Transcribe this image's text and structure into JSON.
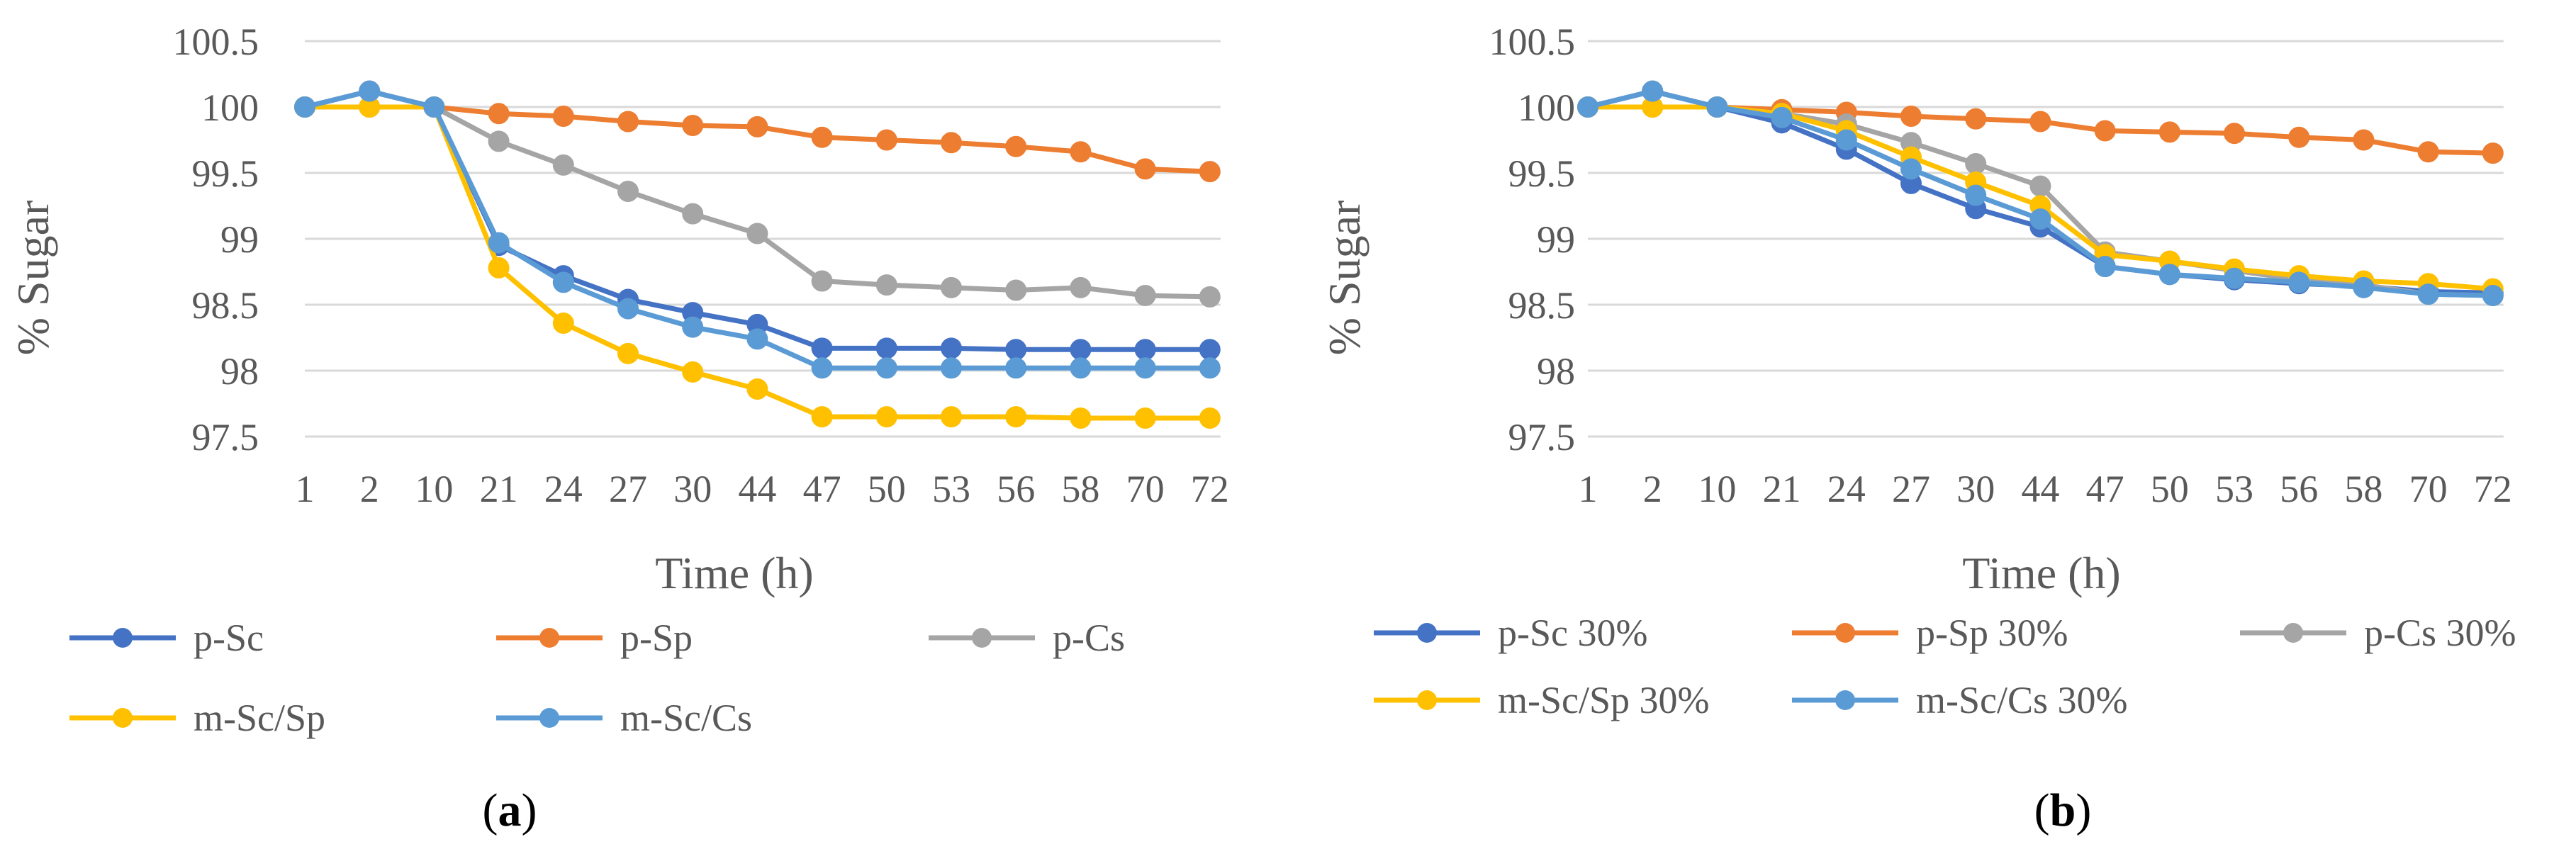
{
  "chart_data": [
    {
      "type": "line",
      "panel_label": "(a)",
      "panel_letter": "a",
      "xlabel": "Time (h)",
      "ylabel": "% Sugar",
      "ylim": [
        97.5,
        100.5
      ],
      "yticks": [
        "97.5",
        "98",
        "98.5",
        "99",
        "99.5",
        "100",
        "100.5"
      ],
      "grid": true,
      "categories": [
        "1",
        "2",
        "10",
        "21",
        "24",
        "27",
        "30",
        "44",
        "47",
        "50",
        "53",
        "56",
        "58",
        "70",
        "72"
      ],
      "series": [
        {
          "name": "p-Sc",
          "color": "#4472C4",
          "values": [
            100,
            100.12,
            100,
            98.95,
            98.72,
            98.54,
            98.44,
            98.35,
            98.17,
            98.17,
            98.17,
            98.16,
            98.16,
            98.16,
            98.16
          ]
        },
        {
          "name": "p-Sp",
          "color": "#ED7D31",
          "values": [
            100,
            100,
            100,
            99.95,
            99.93,
            99.89,
            99.86,
            99.85,
            99.77,
            99.75,
            99.73,
            99.7,
            99.66,
            99.53,
            99.51
          ]
        },
        {
          "name": "p-Cs",
          "color": "#A5A5A5",
          "values": [
            100,
            100.12,
            100,
            99.74,
            99.56,
            99.36,
            99.19,
            99.04,
            98.68,
            98.65,
            98.63,
            98.61,
            98.63,
            98.57,
            98.56
          ]
        },
        {
          "name": "m-Sc/Sp",
          "color": "#FFC000",
          "values": [
            100,
            100,
            100,
            98.78,
            98.36,
            98.13,
            97.99,
            97.86,
            97.65,
            97.65,
            97.65,
            97.65,
            97.64,
            97.64,
            97.64
          ]
        },
        {
          "name": "m-Sc/Cs",
          "color": "#5B9BD5",
          "values": [
            100,
            100.12,
            100,
            98.97,
            98.67,
            98.47,
            98.33,
            98.24,
            98.02,
            98.02,
            98.02,
            98.02,
            98.02,
            98.02,
            98.02
          ]
        }
      ]
    },
    {
      "type": "line",
      "panel_label": "(b)",
      "panel_letter": "b",
      "xlabel": "Time (h)",
      "ylabel": "% Sugar",
      "ylim": [
        97.5,
        100.5
      ],
      "yticks": [
        "97.5",
        "98",
        "98.5",
        "99",
        "99.5",
        "100",
        "100.5"
      ],
      "grid": true,
      "categories": [
        "1",
        "2",
        "10",
        "21",
        "24",
        "27",
        "30",
        "44",
        "47",
        "50",
        "53",
        "56",
        "58",
        "70",
        "72"
      ],
      "series": [
        {
          "name": "p-Sc 30%",
          "color": "#4472C4",
          "values": [
            100,
            100.12,
            100,
            99.88,
            99.68,
            99.42,
            99.23,
            99.09,
            98.79,
            98.73,
            98.69,
            98.66,
            98.64,
            98.6,
            98.59
          ]
        },
        {
          "name": "p-Sp 30%",
          "color": "#ED7D31",
          "values": [
            100,
            100,
            100,
            99.98,
            99.96,
            99.93,
            99.91,
            99.89,
            99.82,
            99.81,
            99.8,
            99.77,
            99.75,
            99.66,
            99.65
          ]
        },
        {
          "name": "p-Cs 30%",
          "color": "#A5A5A5",
          "values": [
            100,
            100.12,
            100,
            99.95,
            99.87,
            99.73,
            99.57,
            99.4,
            98.9,
            98.83,
            98.76,
            98.69,
            98.65,
            98.58,
            98.57
          ]
        },
        {
          "name": "m-Sc/Sp 30%",
          "color": "#FFC000",
          "values": [
            100,
            100,
            100,
            99.95,
            99.82,
            99.62,
            99.43,
            99.25,
            98.88,
            98.83,
            98.77,
            98.72,
            98.68,
            98.66,
            98.62
          ]
        },
        {
          "name": "m-Sc/Cs 30%",
          "color": "#5B9BD5",
          "values": [
            100,
            100.12,
            100,
            99.92,
            99.75,
            99.53,
            99.33,
            99.15,
            98.79,
            98.73,
            98.7,
            98.67,
            98.63,
            98.58,
            98.57
          ]
        }
      ]
    }
  ]
}
